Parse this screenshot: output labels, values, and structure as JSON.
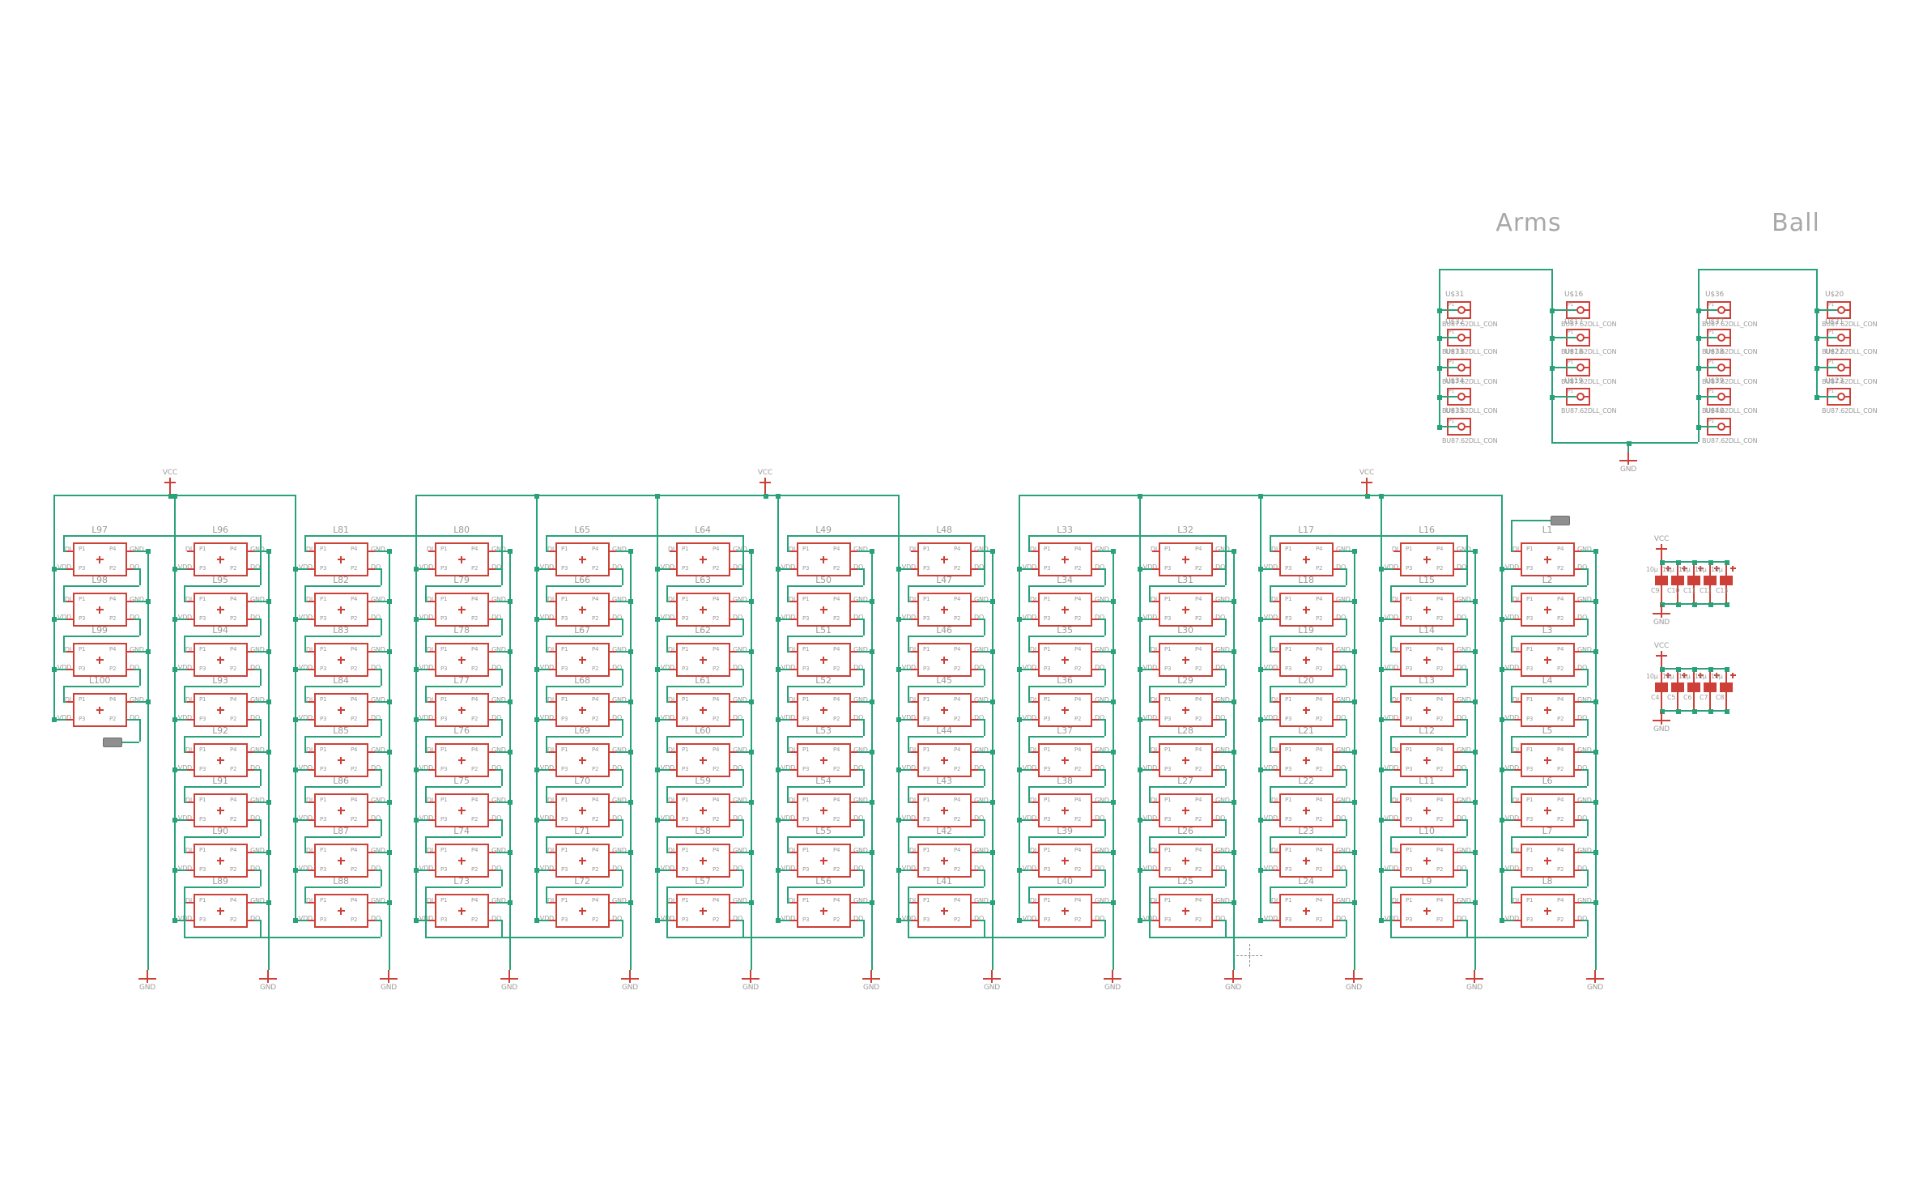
{
  "titles": {
    "arms": "Arms",
    "ball": "Ball"
  },
  "power": {
    "vcc": "VCC",
    "gnd": "GND"
  },
  "led_grid": {
    "pin_labels": {
      "di": "DI",
      "gnd": "GND",
      "vdd": "VDD",
      "do": "DO"
    },
    "inner_pins": {
      "tl": "P1",
      "tr": "P4",
      "bl": "P3",
      "br": "P2"
    },
    "columns": [
      {
        "labels": [
          "L97",
          "L98",
          "L99",
          "L100"
        ]
      },
      {
        "labels": [
          "L96",
          "L95",
          "L94",
          "L93",
          "L92",
          "L91",
          "L90",
          "L89"
        ]
      },
      {
        "labels": [
          "L81",
          "L82",
          "L83",
          "L84",
          "L85",
          "L86",
          "L87",
          "L88"
        ]
      },
      {
        "labels": [
          "L80",
          "L79",
          "L78",
          "L77",
          "L76",
          "L75",
          "L74",
          "L73"
        ]
      },
      {
        "labels": [
          "L65",
          "L66",
          "L67",
          "L68",
          "L69",
          "L70",
          "L71",
          "L72"
        ]
      },
      {
        "labels": [
          "L64",
          "L63",
          "L62",
          "L61",
          "L60",
          "L59",
          "L58",
          "L57"
        ]
      },
      {
        "labels": [
          "L49",
          "L50",
          "L51",
          "L52",
          "L53",
          "L54",
          "L55",
          "L56"
        ]
      },
      {
        "labels": [
          "L48",
          "L47",
          "L46",
          "L45",
          "L44",
          "L43",
          "L42",
          "L41"
        ]
      },
      {
        "labels": [
          "L33",
          "L34",
          "L35",
          "L36",
          "L37",
          "L38",
          "L39",
          "L40"
        ]
      },
      {
        "labels": [
          "L32",
          "L31",
          "L30",
          "L29",
          "L28",
          "L27",
          "L26",
          "L25"
        ]
      },
      {
        "labels": [
          "L17",
          "L18",
          "L19",
          "L20",
          "L21",
          "L22",
          "L23",
          "L24"
        ]
      },
      {
        "labels": [
          "L16",
          "L15",
          "L14",
          "L13",
          "L12",
          "L11",
          "L10",
          "L9"
        ]
      },
      {
        "labels": [
          "L1",
          "L2",
          "L3",
          "L4",
          "L5",
          "L6",
          "L7",
          "L8"
        ]
      }
    ]
  },
  "connectors": {
    "pin": "P1",
    "value": "BU87.62DLL_CON",
    "groups": [
      {
        "title": "Arms",
        "columns": [
          {
            "names": [
              "U$31",
              "U$32",
              "U$33",
              "U$34",
              "U$35"
            ]
          },
          {
            "names": [
              "U$16",
              "U$17",
              "U$18",
              "U$19"
            ]
          }
        ]
      },
      {
        "title": "Ball",
        "columns": [
          {
            "names": [
              "U$36",
              "U$37",
              "U$38",
              "U$39",
              "U$40"
            ]
          },
          {
            "names": [
              "U$20",
              "U$21",
              "U$22",
              "U$23"
            ]
          }
        ]
      }
    ]
  },
  "cap_banks": {
    "value": "10µ",
    "banks": [
      {
        "names": [
          "C9",
          "C10",
          "C11",
          "C12",
          "C13"
        ]
      },
      {
        "names": [
          "C4",
          "C5",
          "C6",
          "C7",
          "C8"
        ]
      }
    ]
  }
}
